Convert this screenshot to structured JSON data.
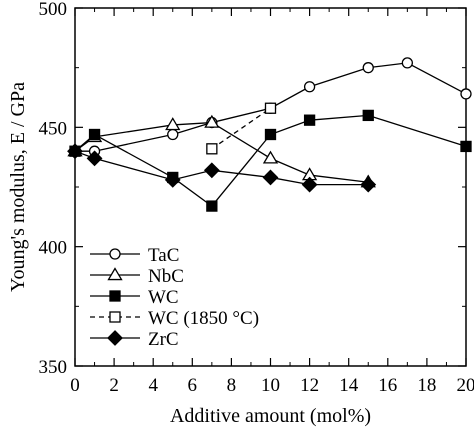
{
  "chart_data": {
    "type": "line",
    "xlabel": "Additive amount (mol%)",
    "ylabel": "Young's modulus, E / GPa",
    "xlim": [
      0,
      20
    ],
    "ylim": [
      350,
      500
    ],
    "xticks": [
      0,
      2,
      4,
      6,
      8,
      10,
      12,
      14,
      16,
      18,
      20
    ],
    "yticks": [
      350,
      400,
      450,
      500
    ],
    "xtick_labels": [
      "0",
      "2",
      "4",
      "6",
      "8",
      "10",
      "12",
      "14",
      "16",
      "18",
      "20"
    ],
    "ytick_labels": [
      "350",
      "400",
      "450",
      "500"
    ],
    "grid": false,
    "legend_position": "bottom-left",
    "series": [
      {
        "name": "TaC",
        "marker": "circle-open",
        "line": "solid",
        "x": [
          0,
          1,
          5,
          7,
          10,
          12,
          15,
          17,
          20
        ],
        "y": [
          440,
          440,
          447,
          452,
          458,
          467,
          475,
          477,
          464
        ]
      },
      {
        "name": "NbC",
        "marker": "triangle-open",
        "line": "solid",
        "x": [
          0,
          1,
          5,
          7,
          10,
          12,
          15
        ],
        "y": [
          440,
          446,
          451,
          452,
          437,
          430,
          427
        ]
      },
      {
        "name": "WC",
        "marker": "square-filled",
        "line": "solid",
        "x": [
          0,
          1,
          5,
          7,
          10,
          12,
          15,
          20
        ],
        "y": [
          440,
          447,
          429,
          417,
          447,
          453,
          455,
          442
        ]
      },
      {
        "name": "WC (1850 °C)",
        "marker": "square-open",
        "line": "dashed",
        "x": [
          7,
          10
        ],
        "y": [
          441,
          458
        ]
      },
      {
        "name": "ZrC",
        "marker": "diamond-filled",
        "line": "solid",
        "x": [
          0,
          1,
          5,
          7,
          10,
          12,
          15
        ],
        "y": [
          440,
          437,
          428,
          432,
          429,
          426,
          426
        ]
      }
    ]
  }
}
